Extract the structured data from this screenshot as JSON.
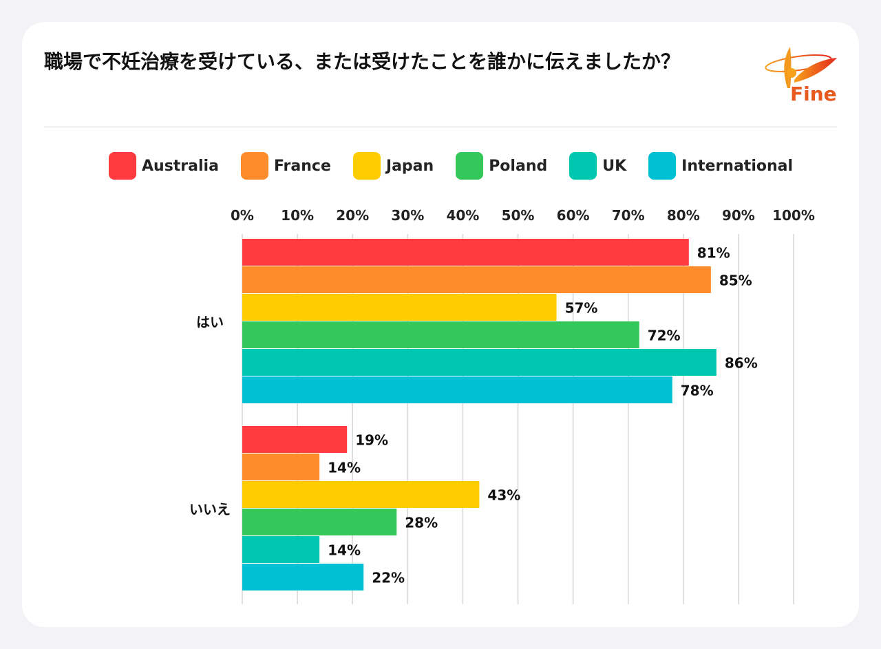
{
  "title": "職場で不妊治療を受けている、または受けたことを誰かに伝えましたか？",
  "logo": {
    "text": "Fine"
  },
  "chart_data": {
    "type": "bar",
    "orientation": "horizontal",
    "title": "職場で不妊治療を受けている、または受けたことを誰かに伝えましたか？",
    "categories": [
      "はい",
      "いいえ"
    ],
    "xlim": [
      0,
      100
    ],
    "ticks": [
      "0%",
      "10%",
      "20%",
      "30%",
      "40%",
      "50%",
      "60%",
      "70%",
      "80%",
      "90%",
      "100%"
    ],
    "grid": true,
    "legend_position": "top",
    "series": [
      {
        "name": "Australia",
        "color": "#ff3b3f",
        "values": [
          81,
          19
        ]
      },
      {
        "name": "France",
        "color": "#ff8c2a",
        "values": [
          85,
          14
        ]
      },
      {
        "name": "Japan",
        "color": "#ffcc00",
        "values": [
          57,
          43
        ]
      },
      {
        "name": "Poland",
        "color": "#34c759",
        "values": [
          72,
          28
        ]
      },
      {
        "name": "UK",
        "color": "#00c7b0",
        "values": [
          86,
          14
        ]
      },
      {
        "name": "International",
        "color": "#00c0d3",
        "values": [
          78,
          22
        ]
      }
    ]
  }
}
